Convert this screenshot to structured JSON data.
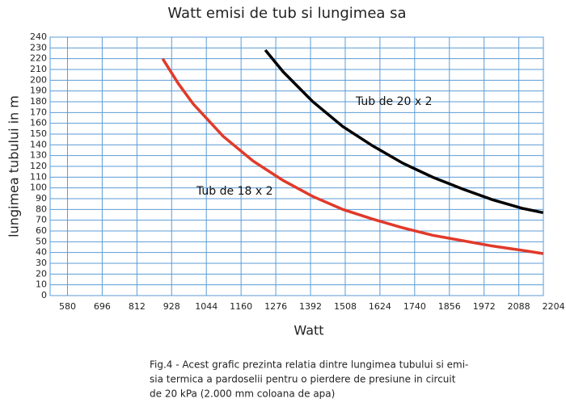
{
  "chart_data": {
    "type": "line",
    "title": "Watt emisi de tub si lungimea sa",
    "x_label": "Watt",
    "y_label": "lungimea tubului in m",
    "caption": [
      "Fig.4 - Acest grafic prezinta relatia dintre lungimea tubului si emi-",
      "sia termica a pardoselii pentru o pierdere de presiune in circuit",
      "de 20 kPa (2.000 mm coloana de apa)"
    ],
    "xlim": [
      522,
      2170
    ],
    "xticks": [
      580,
      696,
      812,
      928,
      1044,
      1160,
      1276,
      1392,
      1508,
      1624,
      1740,
      1856,
      1972,
      2088,
      2204
    ],
    "ylim": [
      0,
      240
    ],
    "yticks": [
      0,
      10,
      20,
      30,
      40,
      50,
      60,
      70,
      80,
      90,
      100,
      110,
      120,
      130,
      140,
      150,
      160,
      170,
      180,
      190,
      200,
      210,
      220,
      230,
      240
    ],
    "grid": true,
    "series": [
      {
        "name": "Tub de 18 x  2",
        "color": "#e03a2a",
        "x": [
          898,
          950,
          1000,
          1100,
          1200,
          1300,
          1400,
          1500,
          1600,
          1700,
          1800,
          1900,
          2000,
          2100,
          2169
        ],
        "values": [
          220,
          197,
          178,
          148,
          125,
          107,
          92,
          80,
          71,
          63,
          56,
          51,
          46,
          42,
          39
        ]
      },
      {
        "name": "Tub de 20 x   2",
        "color": "#000000",
        "x": [
          1241,
          1300,
          1400,
          1500,
          1600,
          1700,
          1800,
          1900,
          2000,
          2100,
          2169
        ],
        "values": [
          228,
          208,
          180,
          157,
          139,
          123,
          110,
          99,
          89,
          81,
          77
        ]
      }
    ]
  }
}
